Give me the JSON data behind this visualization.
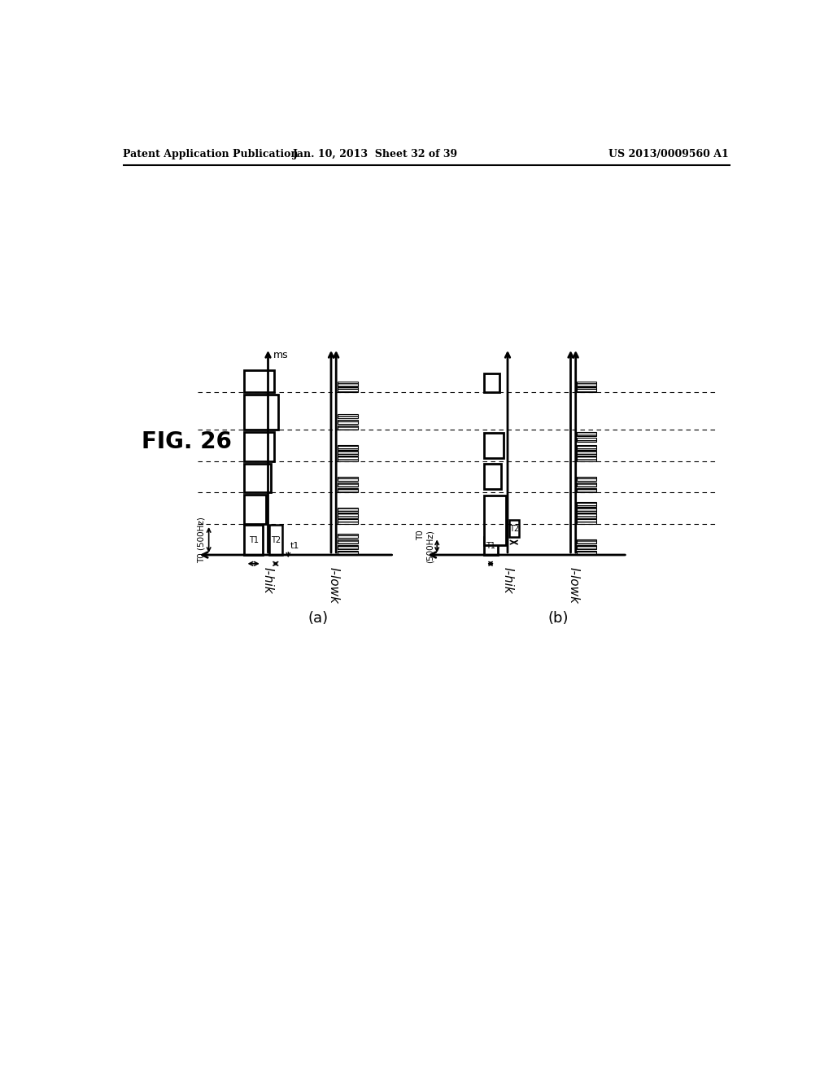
{
  "header_left": "Patent Application Publication",
  "header_mid": "Jan. 10, 2013  Sheet 32 of 39",
  "header_right": "US 2013/0009560 A1",
  "bg_color": "#ffffff",
  "fig_label": "FIG. 26",
  "label_a": "(a)",
  "label_b": "(b)",
  "label_ihik": "I-hik",
  "label_ilowk": "I-lowk",
  "label_ms": "ms",
  "label_T0_a": "T0 (500Hz)",
  "label_T0_b": "T0\n(500Hz)",
  "label_T1": "T1",
  "label_T2": "T2",
  "label_t1": "t1"
}
